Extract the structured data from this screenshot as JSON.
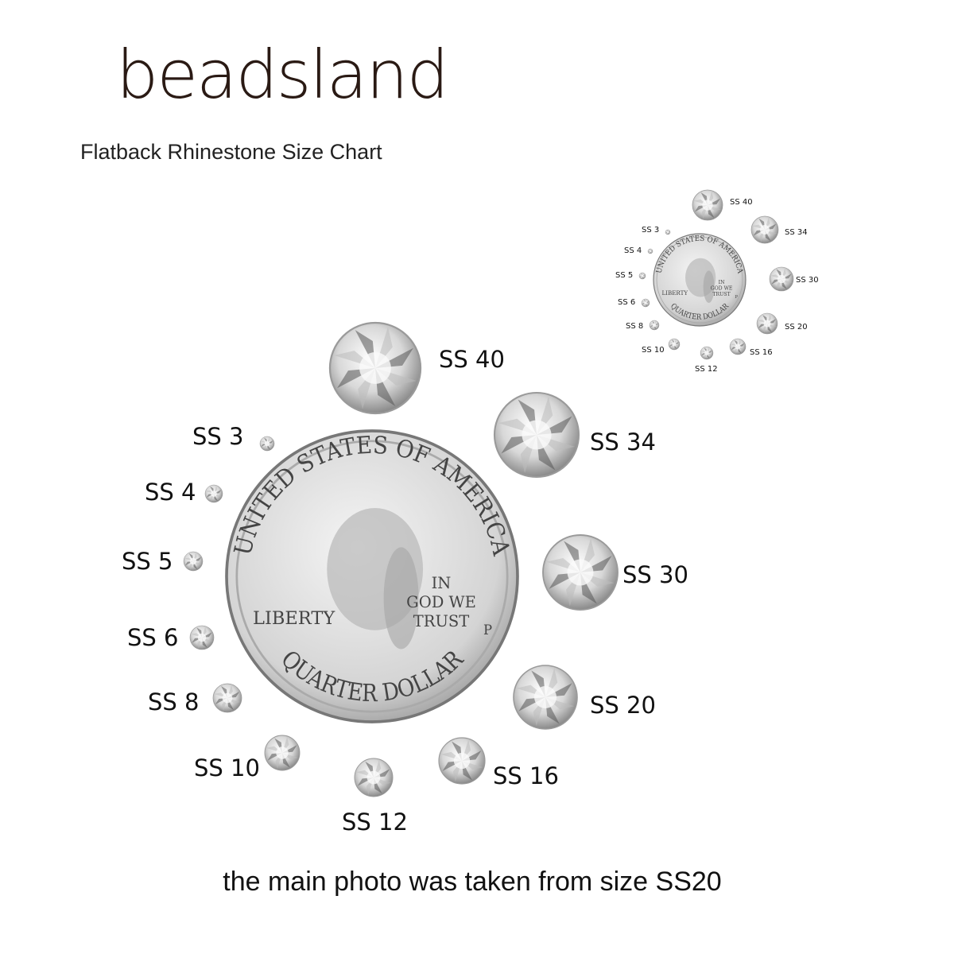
{
  "brand": {
    "logo_text": "beadsland"
  },
  "subtitle": "Flatback Rhinestone Size Chart",
  "caption": "the main photo was taken from size SS20",
  "coin": {
    "top_text": "UNITED STATES OF AMERICA",
    "motto": [
      "IN",
      "GOD WE",
      "TRUST"
    ],
    "liberty": "LIBERTY",
    "bottom_text": "QUARTER DOLLAR",
    "mint": "P"
  },
  "sizes": [
    "SS 40",
    "SS 34",
    "SS 30",
    "SS 20",
    "SS 16",
    "SS 12",
    "SS 10",
    "SS 8",
    "SS 6",
    "SS 5",
    "SS 4",
    "SS 3"
  ],
  "colors": {
    "text": "#111111",
    "coin": "#c9c9c9",
    "logo": "#2a1a14"
  }
}
